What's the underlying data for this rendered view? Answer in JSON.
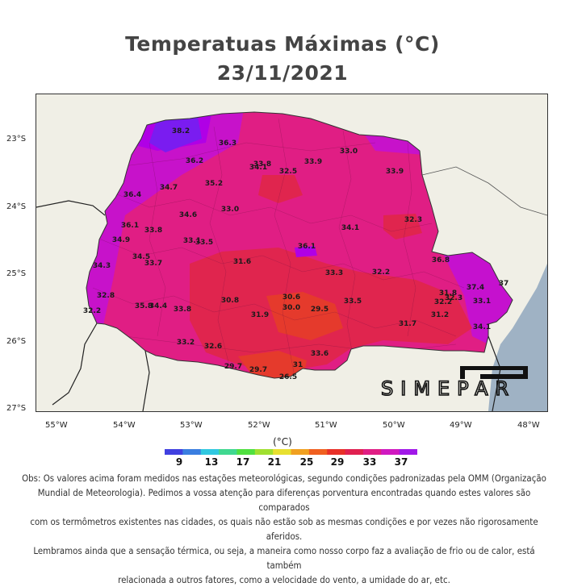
{
  "title": {
    "line1": "Temperatuas Máximas (°C)",
    "line2": "23/11/2021"
  },
  "map": {
    "lat_labels": [
      "23°S",
      "24°S",
      "25°S",
      "26°S",
      "27°S"
    ],
    "lon_labels": [
      "55°W",
      "54°W",
      "53°W",
      "52°W",
      "51°W",
      "50°W",
      "49°W",
      "48°W"
    ],
    "stations": [
      "38.2",
      "36.3",
      "36.2",
      "36.4",
      "34.7",
      "35.2",
      "34.1",
      "33.8",
      "32.5",
      "33.9",
      "33.0",
      "33.9",
      "33.0",
      "34.6",
      "36.1",
      "33.8",
      "34.9",
      "33.1",
      "33.5",
      "36.1",
      "34.1",
      "32.3",
      "34.5",
      "33.7",
      "31.6",
      "34.3",
      "33.3",
      "32.2",
      "36.8",
      "37.4",
      "37",
      "32.8",
      "35.8",
      "34.4",
      "33.8",
      "30.8",
      "30.6",
      "30.0",
      "29.5",
      "31.9",
      "33.5",
      "31.8",
      "32.2",
      "32.3",
      "33.1",
      "32.2",
      "33.2",
      "32.6",
      "31.2",
      "31.7",
      "34.1",
      "29.7",
      "29.7",
      "31",
      "26.5",
      "33.6"
    ],
    "colors": {
      "land_bg": "#f0efe6",
      "ocean": "#9fb2c4",
      "state_base": "#e01e84",
      "hot_purple": "#b400e6",
      "hottest": "#7a1cf0",
      "warm_red": "#e0254e",
      "cool_red": "#e53a2c"
    }
  },
  "legend": {
    "unit": "(°C)",
    "labels": [
      "9",
      "13",
      "17",
      "21",
      "25",
      "29",
      "33",
      "37"
    ],
    "colors": [
      "#4040e0",
      "#3a7ee0",
      "#30c8e0",
      "#40d890",
      "#50e040",
      "#a0e030",
      "#e8e030",
      "#f0a020",
      "#f06020",
      "#e83028",
      "#e02050",
      "#e01e84",
      "#d018c0",
      "#a018e8"
    ]
  },
  "logo": {
    "name": "simepar-logo",
    "text": "SIMEPAR"
  },
  "note": {
    "line1": "Obs: Os valores acima foram medidos nas estações meteorológicas, segundo condições padronizadas pela OMM (Organização",
    "line2": "Mundial de Meteorologia). Pedimos a vossa atenção para diferenças porventura encontradas quando estes valores são comparados",
    "line3": "com os termômetros existentes nas cidades, os quais não estão sob as mesmas condições e por vezes não rigorosamente aferidos.",
    "line4": "Lembramos ainda que a sensação térmica, ou seja, a maneira como nosso corpo faz a avaliação de frio ou de calor, está também",
    "line5": "relacionada a outros fatores, como a velocidade do vento, a umidade do ar, etc."
  }
}
